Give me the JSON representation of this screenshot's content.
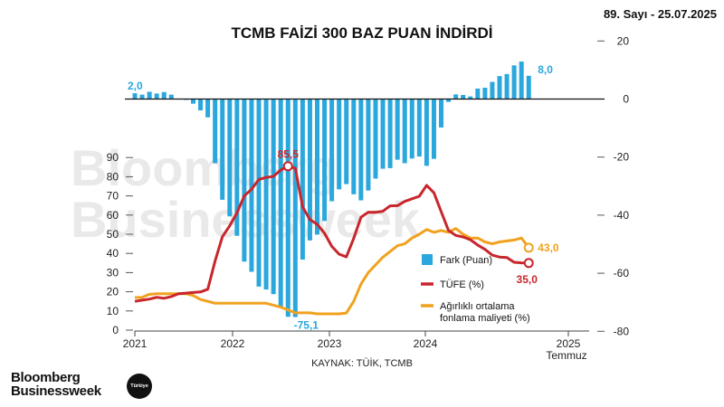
{
  "header": {
    "issue": "89. Sayı - 25.07.2025"
  },
  "source": "KAYNAK: TÜİK, TCMB",
  "brand": {
    "line1": "Bloomberg",
    "line2": "Businessweek",
    "badge": "Türkiye",
    "watermark1": "Bloomberg",
    "watermark2": "Businessweek"
  },
  "chart_data": {
    "type": "line+bar",
    "title": "TCMB FAİZİ 300 BAZ PUAN İNDİRDİ",
    "x_ticks": [
      "2021",
      "2022",
      "2023",
      "2024",
      "2025"
    ],
    "x_sublabel": "Temmuz",
    "y_left": {
      "ticks": [
        0,
        10,
        20,
        30,
        40,
        50,
        60,
        70,
        80,
        90
      ],
      "range": [
        0,
        90
      ]
    },
    "y_right": {
      "ticks": [
        20,
        0,
        -20,
        -40,
        -60,
        -80
      ],
      "range": [
        -80,
        20
      ]
    },
    "legend": [
      "Fark (Puan)",
      "TÜFE (%)",
      "Ağırlıklı ortalama fonlama maliyeti (%)"
    ],
    "legend_lines": [
      "Fark (Puan)",
      "TÜFE (%)",
      "Ağırlıklı ortalama",
      "fonlama maliyeti (%)"
    ],
    "colors": {
      "bars": "#2aa7dd",
      "cpi": "#c8262c",
      "funding": "#f0a21f"
    },
    "annotations": {
      "cpi_peak": "85,5",
      "cpi_last": "35,0",
      "funding_last": "43,0",
      "diff_first": "2,0",
      "diff_min": "-75,1",
      "diff_last": "8,0"
    },
    "months": [
      "2021-01",
      "2021-02",
      "2021-03",
      "2021-04",
      "2021-05",
      "2021-06",
      "2021-07",
      "2021-08",
      "2021-09",
      "2021-10",
      "2021-11",
      "2021-12",
      "2022-01",
      "2022-02",
      "2022-03",
      "2022-04",
      "2022-05",
      "2022-06",
      "2022-07",
      "2022-08",
      "2022-09",
      "2022-10",
      "2022-11",
      "2022-12",
      "2023-01",
      "2023-02",
      "2023-03",
      "2023-04",
      "2023-05",
      "2023-06",
      "2023-07",
      "2023-08",
      "2023-09",
      "2023-10",
      "2023-11",
      "2023-12",
      "2024-01",
      "2024-02",
      "2024-03",
      "2024-04",
      "2024-05",
      "2024-06",
      "2024-07",
      "2024-08",
      "2024-09",
      "2024-10",
      "2024-11",
      "2024-12",
      "2025-01",
      "2025-02",
      "2025-03",
      "2025-04",
      "2025-05",
      "2025-06",
      "2025-07"
    ],
    "series": [
      {
        "name": "TÜFE (%)",
        "values": [
          15.0,
          15.6,
          16.2,
          17.1,
          16.6,
          17.5,
          19.0,
          19.3,
          19.6,
          19.9,
          21.3,
          36.1,
          48.7,
          54.4,
          61.1,
          70.0,
          73.5,
          78.6,
          79.6,
          80.2,
          83.5,
          85.5,
          84.4,
          64.3,
          57.7,
          55.2,
          50.5,
          43.7,
          39.6,
          38.2,
          47.8,
          58.9,
          61.5,
          61.4,
          62.0,
          64.8,
          64.9,
          67.1,
          68.5,
          69.8,
          75.5,
          71.6,
          61.8,
          52.0,
          49.4,
          48.6,
          47.1,
          44.4,
          42.1,
          39.1,
          38.1,
          37.9,
          35.4,
          35.1,
          35.0
        ]
      },
      {
        "name": "Ağırlıklı ortalama fonlama maliyeti (%)",
        "values": [
          17.0,
          17.1,
          18.7,
          19.0,
          19.0,
          19.0,
          19.0,
          19.0,
          18.0,
          16.0,
          15.0,
          14.0,
          14.0,
          14.0,
          14.0,
          14.0,
          14.0,
          14.0,
          14.0,
          13.0,
          12.0,
          10.5,
          9.0,
          9.0,
          9.0,
          8.5,
          8.5,
          8.5,
          8.5,
          8.9,
          15.0,
          24.0,
          30.0,
          34.0,
          38.0,
          41.0,
          44.0,
          45.0,
          48.0,
          50.0,
          52.5,
          51.0,
          52.0,
          51.0,
          53.0,
          50.0,
          48.0,
          48.0,
          46.0,
          45.0,
          46.0,
          46.5,
          47.0,
          48.0,
          43.0
        ]
      },
      {
        "name": "Fark (Puan)",
        "values": [
          2.0,
          1.5,
          2.5,
          1.9,
          2.4,
          1.5,
          0,
          -0.3,
          -1.6,
          -3.9,
          -6.3,
          -22.1,
          -34.7,
          -40.4,
          -47.1,
          -56.0,
          -59.5,
          -64.6,
          -65.6,
          -67.2,
          -71.5,
          -75.0,
          -75.1,
          -55.3,
          -48.7,
          -46.7,
          -42.0,
          -35.2,
          -31.1,
          -29.3,
          -32.8,
          -34.9,
          -31.5,
          -27.4,
          -24.0,
          -23.8,
          -20.9,
          -22.1,
          -20.5,
          -19.8,
          -23.0,
          -20.6,
          -9.8,
          -1.0,
          1.6,
          1.4,
          0.9,
          3.6,
          3.9,
          5.9,
          7.9,
          8.6,
          11.6,
          12.9,
          8.0
        ]
      }
    ]
  }
}
